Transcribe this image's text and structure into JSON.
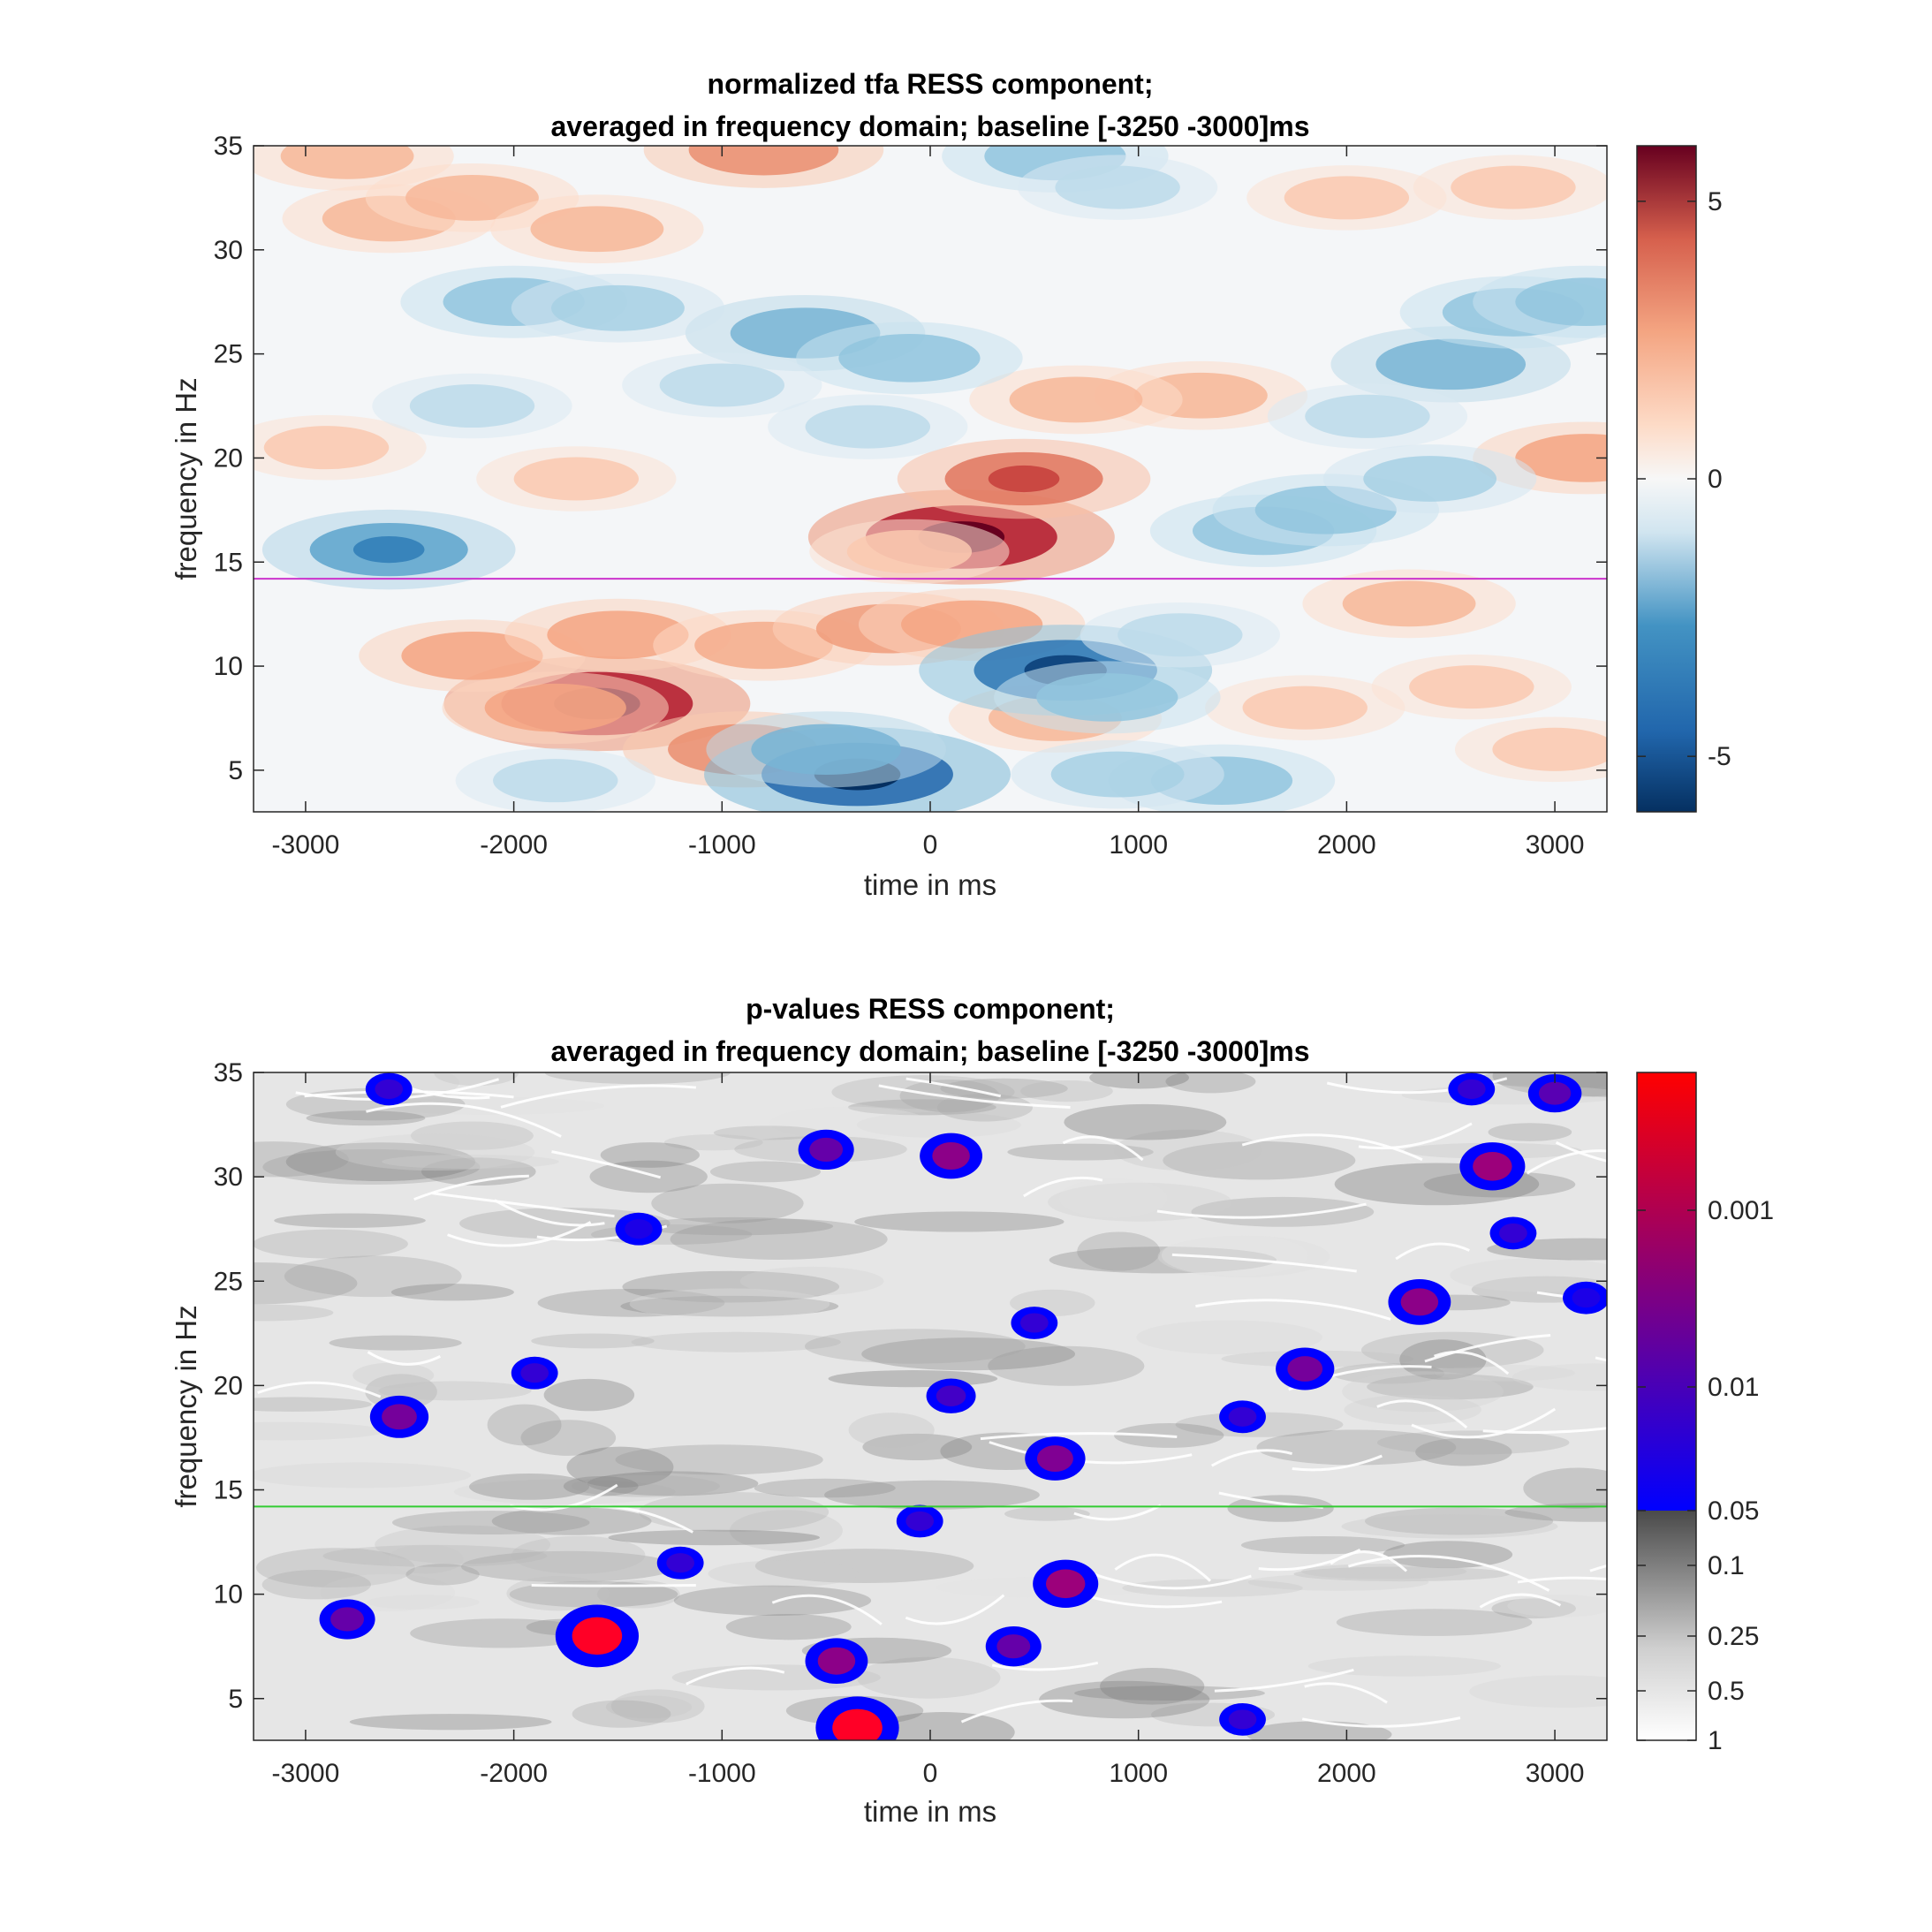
{
  "chart_data": [
    {
      "type": "heatmap",
      "title": [
        "normalized tfa RESS component;",
        "averaged in frequency domain; baseline [-3250 -3000]ms"
      ],
      "xlabel": "time in ms",
      "ylabel": "frequency in Hz",
      "xlim": [
        -3250,
        3250
      ],
      "ylim": [
        3,
        35
      ],
      "xticks": [
        -3000,
        -2000,
        -1000,
        0,
        1000,
        2000,
        3000
      ],
      "yticks": [
        5,
        10,
        15,
        20,
        25,
        30,
        35
      ],
      "colormap": "blue-white-red (diverging)",
      "clim": [
        -6,
        6
      ],
      "colorbar_ticks": [
        -5,
        0,
        5
      ],
      "reference_line": {
        "y": 14.2,
        "color": "#cc33cc"
      },
      "blobs": [
        {
          "x": -2800,
          "y": 34.5,
          "v": 2.5
        },
        {
          "x": -1600,
          "y": 8.2,
          "v": 6.0
        },
        {
          "x": -1800,
          "y": 8.0,
          "v": 3.0
        },
        {
          "x": -2200,
          "y": 10.5,
          "v": 3.0
        },
        {
          "x": -1500,
          "y": 11.5,
          "v": 3.0
        },
        {
          "x": -800,
          "y": 11.0,
          "v": 2.8
        },
        {
          "x": -200,
          "y": 11.8,
          "v": 3.2
        },
        {
          "x": 200,
          "y": 12.0,
          "v": 3.0
        },
        {
          "x": -900,
          "y": 6.0,
          "v": 3.5
        },
        {
          "x": 150,
          "y": 16.2,
          "v": 6.0
        },
        {
          "x": 450,
          "y": 19.0,
          "v": 4.0
        },
        {
          "x": -800,
          "y": 34.8,
          "v": 3.5
        },
        {
          "x": -2600,
          "y": 31.5,
          "v": 2.5
        },
        {
          "x": -2200,
          "y": 32.5,
          "v": 2.5
        },
        {
          "x": -1600,
          "y": 31.0,
          "v": 2.5
        },
        {
          "x": 1300,
          "y": 23.0,
          "v": 2.5
        },
        {
          "x": 700,
          "y": 22.8,
          "v": 2.5
        },
        {
          "x": 2300,
          "y": 13.0,
          "v": 2.5
        },
        {
          "x": 3150,
          "y": 20.0,
          "v": 3.0
        },
        {
          "x": 600,
          "y": 7.5,
          "v": 2.5
        },
        {
          "x": 1800,
          "y": 8.0,
          "v": 2.0
        },
        {
          "x": 2600,
          "y": 9.0,
          "v": 2.0
        },
        {
          "x": 3000,
          "y": 6.0,
          "v": 2.0
        },
        {
          "x": -2900,
          "y": 20.5,
          "v": 2.0
        },
        {
          "x": -1700,
          "y": 19.0,
          "v": 2.0
        },
        {
          "x": -100,
          "y": 15.5,
          "v": 2.0
        },
        {
          "x": 2800,
          "y": 33.0,
          "v": 2.0
        },
        {
          "x": 2000,
          "y": 32.5,
          "v": 2.0
        },
        {
          "x": -350,
          "y": 4.8,
          "v": -6.0
        },
        {
          "x": -500,
          "y": 6.0,
          "v": -3.5
        },
        {
          "x": 650,
          "y": 9.8,
          "v": -5.5
        },
        {
          "x": 850,
          "y": 8.5,
          "v": -3.0
        },
        {
          "x": -2600,
          "y": 15.6,
          "v": -4.0
        },
        {
          "x": -600,
          "y": 26.0,
          "v": -3.5
        },
        {
          "x": -100,
          "y": 24.8,
          "v": -3.0
        },
        {
          "x": 2500,
          "y": 24.5,
          "v": -3.5
        },
        {
          "x": 1600,
          "y": 16.5,
          "v": -3.0
        },
        {
          "x": 1900,
          "y": 17.5,
          "v": -3.0
        },
        {
          "x": 2400,
          "y": 19.0,
          "v": -2.5
        },
        {
          "x": -2000,
          "y": 27.5,
          "v": -3.0
        },
        {
          "x": -1500,
          "y": 27.2,
          "v": -2.5
        },
        {
          "x": 2800,
          "y": 27.0,
          "v": -3.0
        },
        {
          "x": 3150,
          "y": 27.5,
          "v": -3.0
        },
        {
          "x": 600,
          "y": 34.5,
          "v": -3.0
        },
        {
          "x": 900,
          "y": 33.0,
          "v": -2.0
        },
        {
          "x": 1400,
          "y": 4.5,
          "v": -3.0
        },
        {
          "x": 900,
          "y": 4.8,
          "v": -2.5
        },
        {
          "x": -1800,
          "y": 4.5,
          "v": -2.0
        },
        {
          "x": 1200,
          "y": 11.5,
          "v": -2.0
        },
        {
          "x": -300,
          "y": 21.5,
          "v": -2.0
        },
        {
          "x": -1000,
          "y": 23.5,
          "v": -2.0
        },
        {
          "x": 2100,
          "y": 22.0,
          "v": -2.0
        },
        {
          "x": -2200,
          "y": 22.5,
          "v": -2.0
        }
      ]
    },
    {
      "type": "heatmap",
      "title": [
        "p-values RESS component;",
        "averaged in frequency domain; baseline [-3250 -3000]ms"
      ],
      "xlabel": "time in ms",
      "ylabel": "frequency in Hz",
      "xlim": [
        -3250,
        3250
      ],
      "ylim": [
        3,
        35
      ],
      "xticks": [
        -3000,
        -2000,
        -1000,
        0,
        1000,
        2000,
        3000
      ],
      "yticks": [
        5,
        10,
        15,
        20,
        25,
        30,
        35
      ],
      "colormap": "grayscale for p > 0.05, blue-to-red for p < 0.05",
      "colorbar_ticks": [
        "0.001",
        "0.01",
        "0.05",
        "0.1",
        "0.25",
        "0.5",
        "1"
      ],
      "reference_line": {
        "y": 14.2,
        "color": "#33cc33"
      },
      "significant_regions": [
        {
          "x": -1600,
          "y": 8.0,
          "p": 0.0005
        },
        {
          "x": -350,
          "y": 3.6,
          "p": 0.0005
        },
        {
          "x": -450,
          "y": 6.8,
          "p": 0.004
        },
        {
          "x": 650,
          "y": 10.5,
          "p": 0.003
        },
        {
          "x": 600,
          "y": 16.5,
          "p": 0.005
        },
        {
          "x": 2700,
          "y": 30.5,
          "p": 0.003
        },
        {
          "x": 100,
          "y": 31.0,
          "p": 0.004
        },
        {
          "x": -500,
          "y": 31.3,
          "p": 0.008
        },
        {
          "x": 2350,
          "y": 24.0,
          "p": 0.004
        },
        {
          "x": 1800,
          "y": 20.8,
          "p": 0.006
        },
        {
          "x": -2550,
          "y": 18.5,
          "p": 0.006
        },
        {
          "x": -2800,
          "y": 8.8,
          "p": 0.008
        },
        {
          "x": 400,
          "y": 7.5,
          "p": 0.008
        },
        {
          "x": -1200,
          "y": 11.5,
          "p": 0.02
        },
        {
          "x": 100,
          "y": 19.5,
          "p": 0.015
        },
        {
          "x": 2600,
          "y": 34.2,
          "p": 0.02
        },
        {
          "x": 3000,
          "y": 34.0,
          "p": 0.01
        },
        {
          "x": -2600,
          "y": 34.2,
          "p": 0.02
        },
        {
          "x": -1900,
          "y": 20.6,
          "p": 0.02
        },
        {
          "x": 500,
          "y": 23.0,
          "p": 0.02
        },
        {
          "x": 2800,
          "y": 27.3,
          "p": 0.02
        },
        {
          "x": 1500,
          "y": 4.0,
          "p": 0.02
        },
        {
          "x": -50,
          "y": 13.5,
          "p": 0.02
        },
        {
          "x": 1500,
          "y": 18.5,
          "p": 0.02
        },
        {
          "x": -1400,
          "y": 27.5,
          "p": 0.03
        },
        {
          "x": 3150,
          "y": 24.2,
          "p": 0.03
        }
      ]
    }
  ]
}
